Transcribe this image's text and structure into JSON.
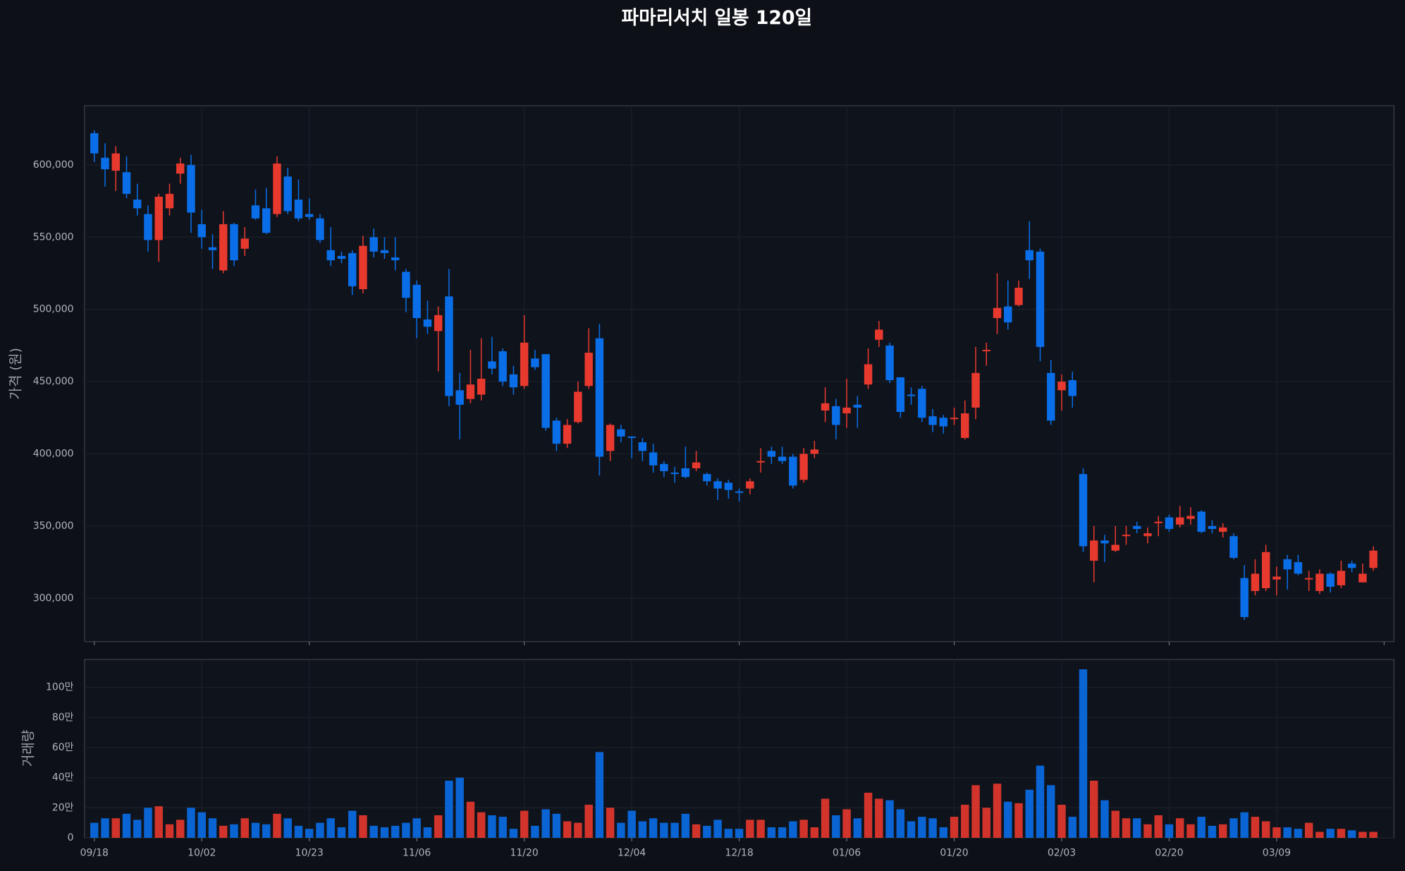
{
  "chart_data": {
    "type": "candlestick",
    "title": "파마리서치 일봉 120일",
    "y_label": "가격 (원)",
    "volume_label": "거래량",
    "up_color": "#e8392f",
    "down_color": "#0a6ee8",
    "grid": true,
    "categories": [
      "09/18",
      null,
      null,
      null,
      null,
      null,
      null,
      null,
      null,
      null,
      "10/02",
      null,
      null,
      null,
      null,
      null,
      null,
      null,
      null,
      null,
      "10/23",
      null,
      null,
      null,
      null,
      null,
      null,
      null,
      null,
      null,
      "11/06",
      null,
      null,
      null,
      null,
      null,
      null,
      null,
      null,
      null,
      "11/20",
      null,
      null,
      null,
      null,
      null,
      null,
      null,
      null,
      null,
      "12/04",
      null,
      null,
      null,
      null,
      null,
      null,
      null,
      null,
      null,
      "12/18",
      null,
      null,
      null,
      null,
      null,
      null,
      null,
      null,
      null,
      "01/06",
      null,
      null,
      null,
      null,
      null,
      null,
      null,
      null,
      null,
      "01/20",
      null,
      null,
      null,
      null,
      null,
      null,
      null,
      null,
      null,
      "02/03",
      null,
      null,
      null,
      null,
      null,
      null,
      null,
      null,
      null,
      "02/20",
      null,
      null,
      null,
      null,
      null,
      null,
      null,
      null,
      null,
      "03/09",
      null,
      null,
      null,
      null,
      null,
      null,
      null,
      null,
      null
    ],
    "open": [
      622000,
      605000,
      596000,
      595000,
      576000,
      566000,
      548000,
      570000,
      594000,
      600000,
      559000,
      543000,
      527000,
      559000,
      542000,
      572000,
      570000,
      566000,
      592000,
      576000,
      566000,
      563000,
      541000,
      537000,
      539000,
      514000,
      550000,
      541000,
      536000,
      526000,
      517000,
      493000,
      485000,
      509000,
      444000,
      438000,
      441000,
      464000,
      471000,
      455000,
      447000,
      466000,
      469000,
      423000,
      407000,
      422000,
      447000,
      480000,
      402000,
      417000,
      412000,
      408000,
      401000,
      393000,
      387000,
      390000,
      390000,
      386000,
      381000,
      380000,
      374000,
      376000,
      394000,
      402000,
      398000,
      398000,
      382000,
      400000,
      430000,
      433000,
      428000,
      434000,
      448000,
      479000,
      475000,
      453000,
      441000,
      445000,
      426000,
      425000,
      424000,
      411000,
      432000,
      471000,
      494000,
      502000,
      503000,
      541000,
      540000,
      456000,
      444000,
      451000,
      386000,
      326000,
      340000,
      333000,
      343000,
      350000,
      343000,
      352000,
      356000,
      351000,
      355000,
      360000,
      350000,
      346000,
      343000,
      314000,
      305000,
      307000,
      313000,
      327000,
      325000,
      313000,
      305000,
      317000,
      309000,
      324000,
      311000,
      321000
    ],
    "high": [
      624000,
      615000,
      613000,
      606000,
      587000,
      572000,
      580000,
      587000,
      605000,
      607000,
      569000,
      552000,
      568000,
      560000,
      557000,
      583000,
      584000,
      606000,
      598000,
      590000,
      577000,
      566000,
      557000,
      540000,
      541000,
      551000,
      556000,
      550000,
      550000,
      528000,
      520000,
      506000,
      502000,
      528000,
      456000,
      472000,
      480000,
      481000,
      473000,
      461000,
      496000,
      472000,
      469000,
      425000,
      424000,
      450000,
      487000,
      490000,
      421000,
      420000,
      412000,
      411000,
      407000,
      395000,
      391000,
      405000,
      402000,
      387000,
      383000,
      382000,
      376000,
      383000,
      404000,
      405000,
      405000,
      400000,
      404000,
      409000,
      446000,
      438000,
      452000,
      440000,
      473000,
      492000,
      477000,
      453000,
      446000,
      447000,
      431000,
      427000,
      432000,
      437000,
      474000,
      477000,
      525000,
      520000,
      520000,
      561000,
      542000,
      465000,
      455000,
      457000,
      390000,
      350000,
      344000,
      350000,
      350000,
      353000,
      349000,
      357000,
      358000,
      364000,
      363000,
      361000,
      354000,
      352000,
      345000,
      323000,
      327000,
      337000,
      322000,
      330000,
      330000,
      319000,
      320000,
      318000,
      326000,
      326000,
      324000,
      336000
    ],
    "low": [
      602000,
      585000,
      582000,
      577000,
      565000,
      540000,
      533000,
      565000,
      587000,
      553000,
      542000,
      528000,
      525000,
      530000,
      537000,
      562000,
      552000,
      564000,
      566000,
      561000,
      562000,
      546000,
      530000,
      532000,
      510000,
      511000,
      536000,
      535000,
      527000,
      498000,
      480000,
      483000,
      457000,
      433000,
      410000,
      435000,
      437000,
      455000,
      447000,
      441000,
      445000,
      458000,
      416000,
      402000,
      404000,
      421000,
      445000,
      385000,
      395000,
      408000,
      397000,
      395000,
      387000,
      384000,
      380000,
      383000,
      388000,
      378000,
      368000,
      369000,
      367000,
      372000,
      387000,
      393000,
      393000,
      376000,
      380000,
      397000,
      422000,
      410000,
      418000,
      418000,
      445000,
      474000,
      449000,
      425000,
      434000,
      422000,
      415000,
      414000,
      420000,
      410000,
      424000,
      461000,
      483000,
      486000,
      502000,
      521000,
      464000,
      420000,
      430000,
      432000,
      332000,
      311000,
      325000,
      332000,
      337000,
      345000,
      338000,
      343000,
      346000,
      349000,
      351000,
      345000,
      345000,
      342000,
      327000,
      285000,
      302000,
      305000,
      302000,
      306000,
      316000,
      305000,
      303000,
      304000,
      307000,
      318000,
      311000,
      319000
    ],
    "close": [
      608000,
      597000,
      608000,
      580000,
      570000,
      548000,
      578000,
      580000,
      601000,
      567000,
      550000,
      541000,
      559000,
      534000,
      549000,
      563000,
      553000,
      601000,
      568000,
      563000,
      564000,
      548000,
      534000,
      535000,
      516000,
      544000,
      540000,
      539000,
      534000,
      508000,
      494000,
      488000,
      496000,
      440000,
      434000,
      448000,
      452000,
      459000,
      450000,
      446000,
      477000,
      460000,
      418000,
      407000,
      420000,
      443000,
      470000,
      398000,
      420000,
      412000,
      411000,
      402000,
      392000,
      388000,
      386000,
      384000,
      394000,
      381000,
      376000,
      375000,
      373000,
      381000,
      395000,
      398000,
      395000,
      378000,
      400000,
      403000,
      435000,
      420000,
      432000,
      432000,
      462000,
      486000,
      451000,
      429000,
      440000,
      425000,
      420000,
      419000,
      425000,
      428000,
      456000,
      472000,
      501000,
      491000,
      515000,
      534000,
      474000,
      423000,
      450000,
      440000,
      336000,
      340000,
      338000,
      337000,
      344000,
      348000,
      345000,
      353000,
      348000,
      356000,
      357000,
      346000,
      348000,
      349000,
      328000,
      287000,
      317000,
      332000,
      315000,
      320000,
      317000,
      314000,
      317000,
      308000,
      319000,
      321000,
      317000,
      333000
    ],
    "volume": [
      100000,
      130000,
      130000,
      160000,
      120000,
      200000,
      210000,
      90000,
      120000,
      200000,
      170000,
      130000,
      80000,
      90000,
      130000,
      100000,
      90000,
      160000,
      130000,
      80000,
      60000,
      100000,
      130000,
      70000,
      180000,
      150000,
      80000,
      70000,
      80000,
      100000,
      130000,
      70000,
      150000,
      380000,
      400000,
      240000,
      170000,
      150000,
      140000,
      60000,
      180000,
      80000,
      190000,
      160000,
      110000,
      100000,
      220000,
      570000,
      200000,
      100000,
      180000,
      110000,
      130000,
      100000,
      100000,
      160000,
      90000,
      80000,
      120000,
      60000,
      60000,
      120000,
      120000,
      70000,
      70000,
      110000,
      120000,
      70000,
      260000,
      150000,
      190000,
      130000,
      300000,
      260000,
      250000,
      190000,
      110000,
      140000,
      130000,
      70000,
      140000,
      220000,
      350000,
      200000,
      360000,
      240000,
      230000,
      320000,
      480000,
      350000,
      220000,
      140000,
      1120000,
      380000,
      250000,
      180000,
      130000,
      130000,
      90000,
      150000,
      90000,
      130000,
      90000,
      140000,
      80000,
      90000,
      130000,
      170000,
      140000,
      110000,
      70000,
      70000,
      60000,
      100000,
      40000,
      60000,
      60000,
      50000,
      40000,
      40000
    ],
    "ylim": [
      270000,
      641000
    ],
    "yticks": [
      {
        "value": 300000,
        "label": "300,000"
      },
      {
        "value": 350000,
        "label": "350,000"
      },
      {
        "value": 400000,
        "label": "400,000"
      },
      {
        "value": 450000,
        "label": "450,000"
      },
      {
        "value": 500000,
        "label": "500,000"
      },
      {
        "value": 550000,
        "label": "550,000"
      },
      {
        "value": 600000,
        "label": "600,000"
      }
    ],
    "volume_ylim": [
      0,
      1185000
    ],
    "volume_yticks": [
      0,
      {
        "value": 200000,
        "label": "20만"
      },
      {
        "value": 400000,
        "label": "40만"
      },
      {
        "value": 600000,
        "label": "60만"
      },
      {
        "value": 800000,
        "label": "80만"
      },
      {
        "value": 1000000,
        "label": "100만"
      }
    ]
  }
}
